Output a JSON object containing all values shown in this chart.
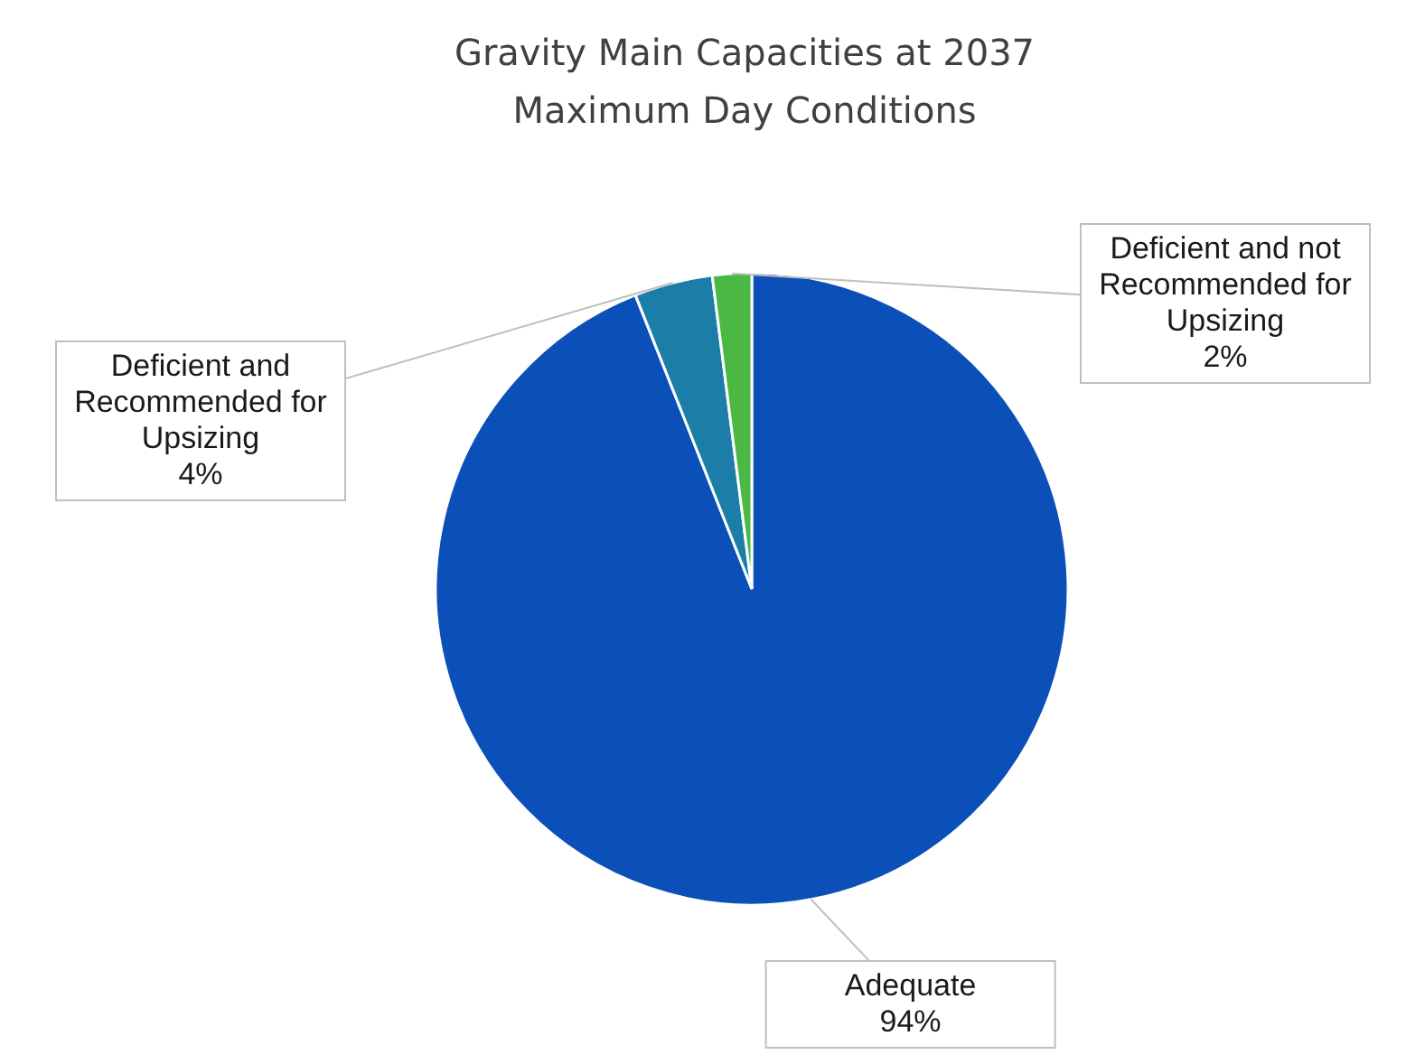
{
  "chart_data": {
    "type": "pie",
    "title": "Gravity Main Capacities at 2037 Maximum Day Conditions",
    "categories": [
      "Adequate",
      "Deficient and Recommended for Upsizing",
      "Deficient and not Recommended for Upsizing"
    ],
    "values": [
      94,
      4,
      2
    ],
    "colors": [
      "#0b4fb8",
      "#1b7ea6",
      "#4bb843"
    ],
    "value_labels": [
      "94%",
      "4%",
      "2%"
    ],
    "legend": false
  }
}
